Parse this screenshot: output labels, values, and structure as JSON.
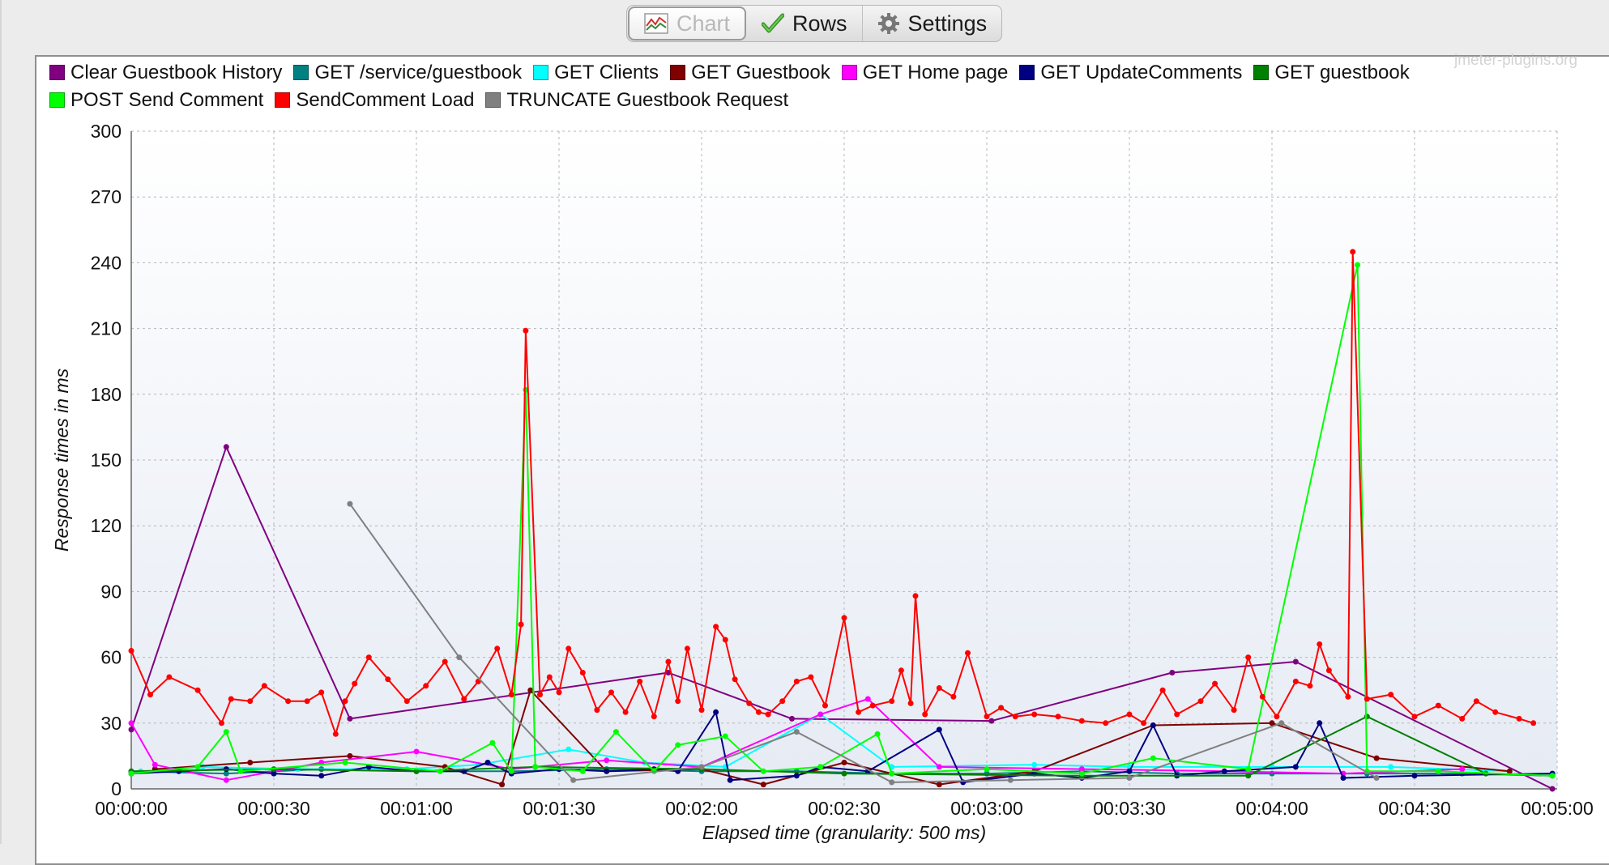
{
  "tabs": [
    {
      "label": "Chart",
      "icon": "chart-icon",
      "active": true
    },
    {
      "label": "Rows",
      "icon": "checkmark-icon",
      "active": false
    },
    {
      "label": "Settings",
      "icon": "gear-icon",
      "active": false
    }
  ],
  "watermark": "jmeter-plugins.org",
  "chart_data": {
    "type": "line",
    "xlabel": "Elapsed time (granularity: 500 ms)",
    "ylabel": "Response times in ms",
    "xlim": [
      0,
      300
    ],
    "ylim": [
      0,
      300
    ],
    "x_unit": "seconds",
    "x_ticks": [
      "00:00:00",
      "00:00:30",
      "00:01:00",
      "00:01:30",
      "00:02:00",
      "00:02:30",
      "00:03:00",
      "00:03:30",
      "00:04:00",
      "00:04:30",
      "00:05:00"
    ],
    "y_ticks": [
      0,
      30,
      60,
      90,
      120,
      150,
      180,
      210,
      240,
      270,
      300
    ],
    "grid": true,
    "legend_position": "top",
    "series": [
      {
        "name": "Clear Guestbook History",
        "color": "#800080",
        "points": [
          [
            0,
            27
          ],
          [
            20,
            156
          ],
          [
            46,
            32
          ],
          [
            113,
            53
          ],
          [
            139,
            32
          ],
          [
            181,
            31
          ],
          [
            219,
            53
          ],
          [
            245,
            58
          ],
          [
            299,
            0
          ]
        ]
      },
      {
        "name": "GET /service/guestbook",
        "color": "#008080",
        "points": [
          [
            0,
            8
          ],
          [
            20,
            7
          ],
          [
            40,
            9
          ],
          [
            60,
            8
          ],
          [
            80,
            8
          ],
          [
            100,
            9
          ],
          [
            120,
            8
          ],
          [
            140,
            8
          ],
          [
            160,
            7
          ],
          [
            180,
            7
          ],
          [
            200,
            8
          ],
          [
            220,
            7
          ],
          [
            240,
            7
          ],
          [
            260,
            7
          ],
          [
            280,
            7
          ],
          [
            299,
            6
          ]
        ]
      },
      {
        "name": "GET Clients",
        "color": "#00ffff",
        "points": [
          [
            2,
            8
          ],
          [
            15,
            10
          ],
          [
            35,
            9
          ],
          [
            58,
            9
          ],
          [
            73,
            11
          ],
          [
            92,
            18
          ],
          [
            108,
            12
          ],
          [
            125,
            10
          ],
          [
            145,
            34
          ],
          [
            160,
            10
          ],
          [
            190,
            11
          ],
          [
            210,
            10
          ],
          [
            240,
            10
          ],
          [
            265,
            10
          ],
          [
            290,
            8
          ]
        ]
      },
      {
        "name": "GET Guestbook",
        "color": "#800000",
        "points": [
          [
            5,
            9
          ],
          [
            25,
            12
          ],
          [
            46,
            15
          ],
          [
            66,
            10
          ],
          [
            78,
            2
          ],
          [
            84,
            45
          ],
          [
            100,
            8
          ],
          [
            120,
            9
          ],
          [
            133,
            2
          ],
          [
            150,
            12
          ],
          [
            170,
            2
          ],
          [
            190,
            8
          ],
          [
            215,
            29
          ],
          [
            240,
            30
          ],
          [
            262,
            14
          ],
          [
            290,
            8
          ]
        ]
      },
      {
        "name": "GET Home page",
        "color": "#ff00ff",
        "points": [
          [
            0,
            30
          ],
          [
            5,
            11
          ],
          [
            20,
            4
          ],
          [
            40,
            12
          ],
          [
            60,
            17
          ],
          [
            80,
            9
          ],
          [
            100,
            13
          ],
          [
            120,
            10
          ],
          [
            145,
            34
          ],
          [
            155,
            41
          ],
          [
            170,
            10
          ],
          [
            200,
            9
          ],
          [
            230,
            8
          ],
          [
            255,
            7
          ],
          [
            280,
            9
          ]
        ]
      },
      {
        "name": "GET UpdateComments",
        "color": "#000080",
        "points": [
          [
            0,
            7
          ],
          [
            10,
            8
          ],
          [
            20,
            9
          ],
          [
            30,
            7
          ],
          [
            40,
            6
          ],
          [
            50,
            10
          ],
          [
            60,
            8
          ],
          [
            70,
            8
          ],
          [
            75,
            12
          ],
          [
            80,
            7
          ],
          [
            90,
            9
          ],
          [
            100,
            8
          ],
          [
            110,
            9
          ],
          [
            115,
            8
          ],
          [
            123,
            35
          ],
          [
            126,
            4
          ],
          [
            140,
            6
          ],
          [
            145,
            10
          ],
          [
            155,
            8
          ],
          [
            170,
            27
          ],
          [
            175,
            3
          ],
          [
            190,
            7
          ],
          [
            200,
            5
          ],
          [
            210,
            8
          ],
          [
            215,
            29
          ],
          [
            220,
            6
          ],
          [
            230,
            8
          ],
          [
            245,
            10
          ],
          [
            250,
            30
          ],
          [
            255,
            5
          ],
          [
            270,
            6
          ],
          [
            299,
            7
          ]
        ]
      },
      {
        "name": "GET guestbook",
        "color": "#008000",
        "points": [
          [
            0,
            8
          ],
          [
            30,
            9
          ],
          [
            60,
            8
          ],
          [
            85,
            10
          ],
          [
            120,
            9
          ],
          [
            150,
            7
          ],
          [
            200,
            6
          ],
          [
            235,
            6
          ],
          [
            260,
            33
          ],
          [
            285,
            7
          ],
          [
            299,
            6
          ]
        ]
      },
      {
        "name": "POST Send Comment",
        "color": "#00ff00",
        "points": [
          [
            0,
            7
          ],
          [
            14,
            10
          ],
          [
            20,
            26
          ],
          [
            23,
            8
          ],
          [
            45,
            12
          ],
          [
            65,
            8
          ],
          [
            76,
            21
          ],
          [
            80,
            8
          ],
          [
            83,
            182
          ],
          [
            85,
            10
          ],
          [
            95,
            8
          ],
          [
            102,
            26
          ],
          [
            110,
            8
          ],
          [
            115,
            20
          ],
          [
            125,
            24
          ],
          [
            133,
            8
          ],
          [
            145,
            10
          ],
          [
            157,
            25
          ],
          [
            160,
            7
          ],
          [
            180,
            9
          ],
          [
            200,
            7
          ],
          [
            215,
            14
          ],
          [
            235,
            9
          ],
          [
            258,
            239
          ],
          [
            260,
            8
          ],
          [
            275,
            8
          ],
          [
            299,
            6
          ]
        ]
      },
      {
        "name": "SendComment Load",
        "color": "#ff0000",
        "points": [
          [
            0,
            63
          ],
          [
            4,
            43
          ],
          [
            8,
            51
          ],
          [
            14,
            45
          ],
          [
            19,
            30
          ],
          [
            21,
            41
          ],
          [
            25,
            40
          ],
          [
            28,
            47
          ],
          [
            33,
            40
          ],
          [
            37,
            40
          ],
          [
            40,
            44
          ],
          [
            43,
            25
          ],
          [
            45,
            40
          ],
          [
            47,
            48
          ],
          [
            50,
            60
          ],
          [
            54,
            50
          ],
          [
            58,
            40
          ],
          [
            62,
            47
          ],
          [
            66,
            58
          ],
          [
            70,
            41
          ],
          [
            73,
            49
          ],
          [
            77,
            64
          ],
          [
            80,
            43
          ],
          [
            82,
            75
          ],
          [
            83,
            209
          ],
          [
            86,
            43
          ],
          [
            88,
            51
          ],
          [
            90,
            44
          ],
          [
            92,
            64
          ],
          [
            95,
            53
          ],
          [
            98,
            36
          ],
          [
            101,
            44
          ],
          [
            104,
            35
          ],
          [
            107,
            49
          ],
          [
            110,
            33
          ],
          [
            113,
            58
          ],
          [
            115,
            40
          ],
          [
            117,
            64
          ],
          [
            120,
            36
          ],
          [
            123,
            74
          ],
          [
            125,
            68
          ],
          [
            127,
            50
          ],
          [
            130,
            39
          ],
          [
            132,
            35
          ],
          [
            134,
            34
          ],
          [
            137,
            40
          ],
          [
            140,
            49
          ],
          [
            143,
            51
          ],
          [
            146,
            38
          ],
          [
            150,
            78
          ],
          [
            153,
            35
          ],
          [
            156,
            38
          ],
          [
            160,
            40
          ],
          [
            162,
            54
          ],
          [
            164,
            39
          ],
          [
            165,
            88
          ],
          [
            167,
            34
          ],
          [
            170,
            46
          ],
          [
            173,
            42
          ],
          [
            176,
            62
          ],
          [
            180,
            33
          ],
          [
            183,
            37
          ],
          [
            186,
            33
          ],
          [
            190,
            34
          ],
          [
            195,
            33
          ],
          [
            200,
            31
          ],
          [
            205,
            30
          ],
          [
            210,
            34
          ],
          [
            213,
            30
          ],
          [
            217,
            45
          ],
          [
            220,
            34
          ],
          [
            225,
            40
          ],
          [
            228,
            48
          ],
          [
            232,
            36
          ],
          [
            235,
            60
          ],
          [
            238,
            42
          ],
          [
            241,
            33
          ],
          [
            245,
            49
          ],
          [
            248,
            47
          ],
          [
            250,
            66
          ],
          [
            252,
            54
          ],
          [
            256,
            42
          ],
          [
            257,
            245
          ],
          [
            260,
            41
          ],
          [
            265,
            43
          ],
          [
            270,
            33
          ],
          [
            275,
            38
          ],
          [
            280,
            32
          ],
          [
            283,
            40
          ],
          [
            287,
            35
          ],
          [
            292,
            32
          ],
          [
            295,
            30
          ]
        ]
      },
      {
        "name": "TRUNCATE Guestbook Request",
        "color": "#808080",
        "points": [
          [
            46,
            130
          ],
          [
            69,
            60
          ],
          [
            93,
            4
          ],
          [
            120,
            10
          ],
          [
            140,
            26
          ],
          [
            160,
            3
          ],
          [
            185,
            4
          ],
          [
            210,
            5
          ],
          [
            242,
            30
          ],
          [
            262,
            5
          ]
        ]
      }
    ]
  }
}
